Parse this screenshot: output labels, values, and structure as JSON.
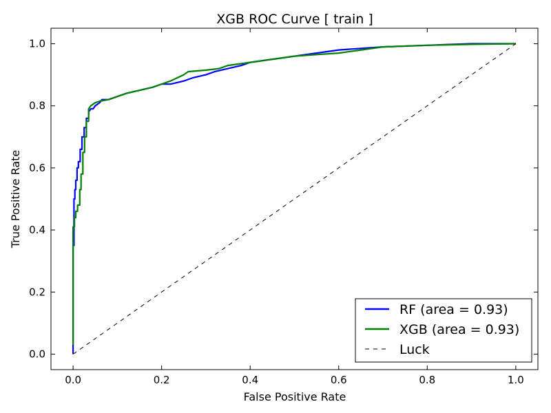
{
  "chart_data": {
    "type": "line",
    "title": "XGB ROC Curve [ train ]",
    "xlabel": "False Positive Rate",
    "ylabel": "True Positive Rate",
    "xlim": [
      -0.05,
      1.05
    ],
    "ylim": [
      -0.05,
      1.05
    ],
    "x_ticks": [
      "0.0",
      "0.2",
      "0.4",
      "0.6",
      "0.8",
      "1.0"
    ],
    "y_ticks": [
      "0.0",
      "0.2",
      "0.4",
      "0.6",
      "0.8",
      "1.0"
    ],
    "grid": false,
    "legend_position": "bottom-right",
    "series": [
      {
        "name": "RF (area = 0.93)",
        "color": "#0000ff",
        "style": "solid",
        "x": [
          0.0,
          0.0,
          0.002,
          0.002,
          0.004,
          0.004,
          0.006,
          0.006,
          0.009,
          0.009,
          0.012,
          0.012,
          0.016,
          0.016,
          0.02,
          0.02,
          0.025,
          0.025,
          0.03,
          0.03,
          0.035,
          0.035,
          0.04,
          0.045,
          0.05,
          0.06,
          0.065,
          0.08,
          0.1,
          0.12,
          0.15,
          0.18,
          0.2,
          0.22,
          0.25,
          0.27,
          0.3,
          0.32,
          0.35,
          0.38,
          0.4,
          0.45,
          0.5,
          0.55,
          0.6,
          0.65,
          0.7,
          0.8,
          0.9,
          1.0
        ],
        "y": [
          0.0,
          0.35,
          0.35,
          0.5,
          0.5,
          0.53,
          0.53,
          0.56,
          0.56,
          0.6,
          0.6,
          0.62,
          0.62,
          0.66,
          0.66,
          0.7,
          0.7,
          0.73,
          0.73,
          0.76,
          0.76,
          0.78,
          0.79,
          0.79,
          0.8,
          0.81,
          0.82,
          0.82,
          0.83,
          0.84,
          0.85,
          0.86,
          0.87,
          0.87,
          0.88,
          0.89,
          0.9,
          0.91,
          0.92,
          0.93,
          0.94,
          0.95,
          0.96,
          0.97,
          0.98,
          0.985,
          0.99,
          0.995,
          1.0,
          1.0
        ]
      },
      {
        "name": "XGB (area = 0.93)",
        "color": "#008000",
        "style": "solid",
        "x": [
          0.0,
          0.0,
          0.003,
          0.003,
          0.006,
          0.006,
          0.01,
          0.01,
          0.015,
          0.015,
          0.018,
          0.018,
          0.022,
          0.022,
          0.026,
          0.026,
          0.03,
          0.03,
          0.035,
          0.035,
          0.04,
          0.05,
          0.06,
          0.08,
          0.1,
          0.12,
          0.15,
          0.18,
          0.2,
          0.22,
          0.25,
          0.26,
          0.3,
          0.33,
          0.35,
          0.4,
          0.45,
          0.5,
          0.55,
          0.6,
          0.65,
          0.7,
          0.8,
          0.9,
          1.0
        ],
        "y": [
          0.03,
          0.41,
          0.41,
          0.44,
          0.44,
          0.46,
          0.46,
          0.48,
          0.48,
          0.53,
          0.53,
          0.58,
          0.58,
          0.65,
          0.65,
          0.7,
          0.7,
          0.75,
          0.75,
          0.79,
          0.8,
          0.81,
          0.815,
          0.82,
          0.83,
          0.84,
          0.85,
          0.86,
          0.87,
          0.88,
          0.9,
          0.91,
          0.915,
          0.92,
          0.93,
          0.94,
          0.95,
          0.96,
          0.965,
          0.97,
          0.98,
          0.99,
          0.995,
          0.998,
          1.0
        ]
      },
      {
        "name": "Luck",
        "color": "#000000",
        "style": "dashed",
        "x": [
          0.0,
          1.0
        ],
        "y": [
          0.0,
          1.0
        ]
      }
    ]
  }
}
